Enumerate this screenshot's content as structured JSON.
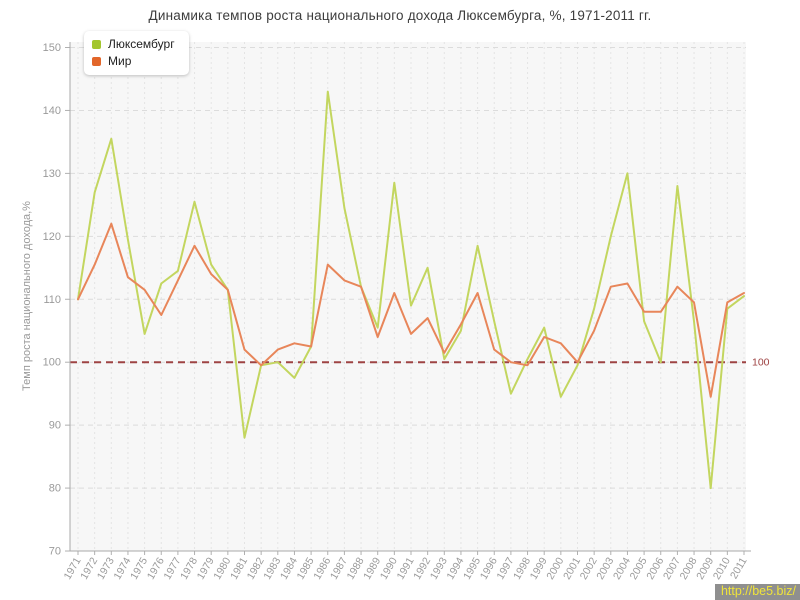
{
  "title": "Динамика темпов роста национального дохода Люксембурга, %, 1971-2011 гг.",
  "legend": {
    "items": [
      {
        "label": "Люксембург",
        "color": "#a3c62e"
      },
      {
        "label": "Мир",
        "color": "#e2662a"
      }
    ]
  },
  "y_axis": {
    "label": "Темп роста национального дохода,%",
    "min": 70,
    "max": 150,
    "step": 10
  },
  "reference_line": {
    "value": 100,
    "label": "100",
    "color": "#9e4343"
  },
  "watermark": {
    "text": "http://be5.biz/"
  },
  "chart_data": {
    "type": "line",
    "title": "Динамика темпов роста национального дохода Люксембурга, %, 1971-2011 гг.",
    "xlabel": "",
    "ylabel": "Темп роста национального дохода,%",
    "ylim": [
      70,
      150
    ],
    "grid": true,
    "legend_position": "top-left",
    "reference_line": 100,
    "x": [
      1971,
      1972,
      1973,
      1974,
      1975,
      1976,
      1977,
      1978,
      1979,
      1980,
      1981,
      1982,
      1983,
      1984,
      1985,
      1986,
      1987,
      1988,
      1989,
      1990,
      1991,
      1992,
      1993,
      1994,
      1995,
      1996,
      1997,
      1998,
      1999,
      2000,
      2001,
      2002,
      2003,
      2004,
      2005,
      2006,
      2007,
      2008,
      2009,
      2010,
      2011
    ],
    "series": [
      {
        "name": "Люксембург",
        "color": "#c3d65f",
        "values": [
          110,
          127,
          135.5,
          119.5,
          104.5,
          112.5,
          114.5,
          125.5,
          115.5,
          111.5,
          88,
          99.5,
          100,
          97.5,
          102.5,
          143,
          124.5,
          112,
          105.5,
          128.5,
          109,
          115,
          100.5,
          105,
          118.5,
          106.5,
          95,
          100.5,
          105.5,
          94.5,
          99.5,
          108.5,
          120,
          130,
          106.5,
          100,
          128,
          106.5,
          80,
          108.5,
          110.5
        ]
      },
      {
        "name": "Мир",
        "color": "#e8865a",
        "values": [
          110,
          115.5,
          122,
          113.5,
          111.5,
          107.5,
          113,
          118.5,
          114,
          111.5,
          102,
          99.5,
          102,
          103,
          102.5,
          115.5,
          113,
          112,
          104,
          111,
          104.5,
          107,
          101.5,
          106,
          111,
          102,
          100,
          99.5,
          104,
          103,
          100,
          105,
          112,
          112.5,
          108,
          108,
          112,
          109.5,
          94.5,
          109.5,
          111
        ]
      }
    ]
  }
}
